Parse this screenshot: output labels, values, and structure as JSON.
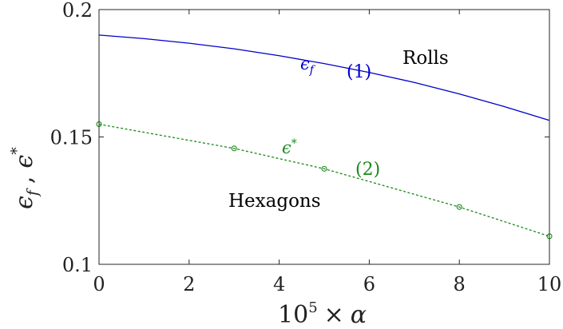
{
  "chart_data": {
    "type": "line",
    "xlabel": {
      "base": "10",
      "exp": "5",
      "op": "×",
      "var": "α"
    },
    "ylabel": {
      "a": "ϵ",
      "a_sub": "f",
      "sep": ",",
      "b": "ϵ",
      "b_sup": "*"
    },
    "xlim": [
      0,
      10
    ],
    "ylim": [
      0.1,
      0.2
    ],
    "x_ticks": [
      0,
      2,
      4,
      6,
      8,
      10
    ],
    "y_ticks": [
      0.1,
      0.15,
      0.2
    ],
    "x_tick_labels": [
      "0",
      "2",
      "4",
      "6",
      "8",
      "10"
    ],
    "y_tick_labels": [
      "0.1",
      "0.15",
      "0.2"
    ],
    "grid": false,
    "series": [
      {
        "label_main": "ϵ",
        "label_sub": "f",
        "marker_label": "(1)",
        "color": "#0000cc",
        "style": "solid",
        "markers": false,
        "x": [
          0,
          1,
          2,
          3,
          4,
          5,
          6,
          7,
          8,
          9,
          10
        ],
        "y": [
          0.19,
          0.1886,
          0.1868,
          0.1846,
          0.1819,
          0.1788,
          0.1753,
          0.1714,
          0.1669,
          0.1619,
          0.1565
        ]
      },
      {
        "label_main": "ϵ",
        "label_sup": "*",
        "marker_label": "(2)",
        "color": "#1a8a1a",
        "style": "dashed",
        "markers": true,
        "x": [
          0,
          3,
          5,
          8,
          10
        ],
        "y": [
          0.155,
          0.1455,
          0.1375,
          0.1225,
          0.111
        ]
      }
    ],
    "annotations": {
      "rolls": "Rolls",
      "hexagons": "Hexagons"
    }
  }
}
